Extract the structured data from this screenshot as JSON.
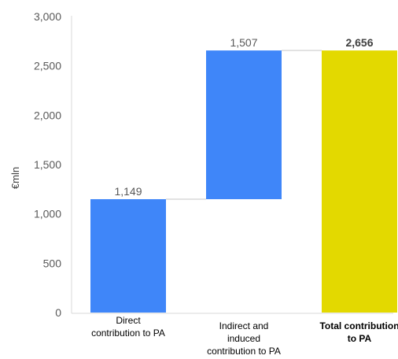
{
  "chart_data": {
    "type": "bar",
    "subtype": "waterfall",
    "categories": [
      "Direct contribution to PA",
      "Indirect and induced contribution to PA",
      "Total contribution to PA"
    ],
    "values": [
      1149,
      1507,
      2656
    ],
    "data_labels": [
      "1,149",
      "1,507",
      "2,656"
    ],
    "ylabel": "€mln",
    "ylim": [
      0,
      3000
    ],
    "yticks": [
      "0",
      "500",
      "1,000",
      "1,500",
      "2,000",
      "2,500",
      "3,000"
    ],
    "grid": false,
    "legend": "none",
    "colors": [
      "#3f86f9",
      "#3f86f9",
      "#e3d900"
    ],
    "connector_color": "#d9d9d9",
    "axis_color": "#d9d9d9"
  }
}
